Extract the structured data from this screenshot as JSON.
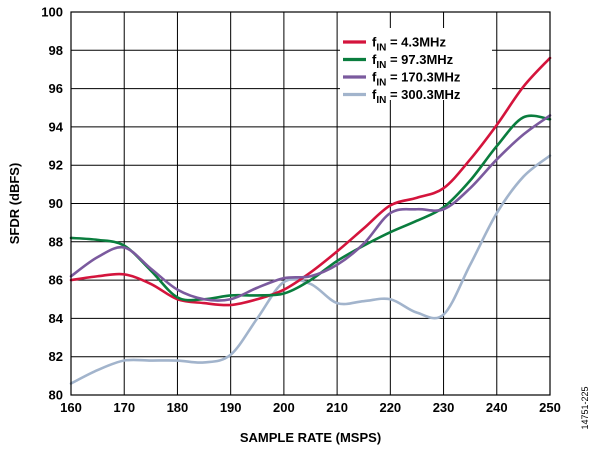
{
  "chart_data": {
    "type": "line",
    "xlabel": "SAMPLE RATE (MSPS)",
    "ylabel": "SFDR (dBFS)",
    "xlim": [
      160,
      250
    ],
    "ylim": [
      80,
      100
    ],
    "x_ticks": [
      160,
      170,
      180,
      190,
      200,
      210,
      220,
      230,
      240,
      250
    ],
    "y_ticks": [
      80,
      82,
      84,
      86,
      88,
      90,
      92,
      94,
      96,
      98,
      100
    ],
    "grid": true,
    "legend": "top-right",
    "figure_id": "14751-225",
    "series": [
      {
        "name": "f",
        "name_sub": "IN",
        "name_rest": " = 4.3MHz",
        "color": "#d4143c",
        "x": [
          160,
          165,
          170,
          175,
          180,
          185,
          190,
          195,
          200,
          205,
          210,
          215,
          220,
          225,
          230,
          235,
          240,
          245,
          250
        ],
        "y": [
          86.0,
          86.2,
          86.3,
          85.8,
          85.0,
          84.8,
          84.7,
          85.0,
          85.5,
          86.4,
          87.5,
          88.7,
          89.9,
          90.3,
          90.8,
          92.3,
          94.1,
          96.1,
          97.6
        ]
      },
      {
        "name": "f",
        "name_sub": "IN",
        "name_rest": " = 97.3MHz",
        "color": "#0a7d3e",
        "x": [
          160,
          165,
          170,
          175,
          180,
          185,
          190,
          195,
          200,
          205,
          210,
          215,
          220,
          225,
          230,
          235,
          240,
          245,
          250
        ],
        "y": [
          88.2,
          88.1,
          87.8,
          86.5,
          85.1,
          85.0,
          85.2,
          85.2,
          85.3,
          86.0,
          87.0,
          87.8,
          88.5,
          89.1,
          89.8,
          91.2,
          93.0,
          94.5,
          94.4
        ]
      },
      {
        "name": "f",
        "name_sub": "IN",
        "name_rest": " = 170.3MHz",
        "color": "#7b5a9e",
        "x": [
          160,
          165,
          170,
          175,
          180,
          185,
          190,
          195,
          200,
          205,
          210,
          215,
          220,
          225,
          230,
          235,
          240,
          245,
          250
        ],
        "y": [
          86.2,
          87.2,
          87.7,
          86.6,
          85.5,
          85.0,
          85.0,
          85.6,
          86.1,
          86.2,
          86.8,
          87.9,
          89.5,
          89.7,
          89.7,
          90.8,
          92.3,
          93.6,
          94.6
        ]
      },
      {
        "name": "f",
        "name_sub": "IN",
        "name_rest": " = 300.3MHz",
        "color": "#a2b4cc",
        "x": [
          160,
          165,
          170,
          175,
          180,
          185,
          190,
          195,
          200,
          205,
          210,
          215,
          220,
          225,
          230,
          235,
          240,
          245,
          250
        ],
        "y": [
          80.6,
          81.3,
          81.8,
          81.8,
          81.8,
          81.7,
          82.1,
          84.0,
          85.9,
          85.8,
          84.8,
          84.9,
          85.0,
          84.3,
          84.2,
          86.8,
          89.5,
          91.4,
          92.5
        ]
      }
    ]
  }
}
